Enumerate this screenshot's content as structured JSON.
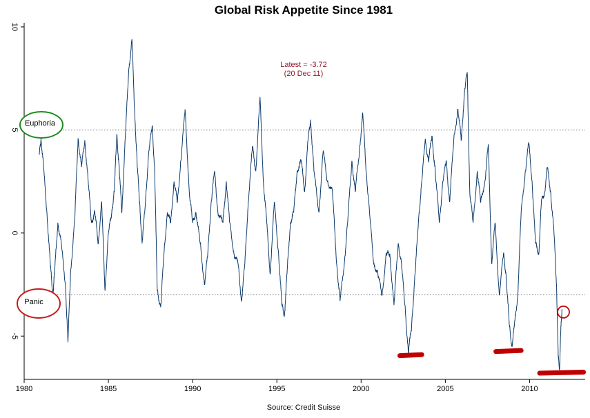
{
  "chart_data": {
    "type": "line",
    "title": "Global Risk Appetite Since 1981",
    "source": "Source: Credit Suisse",
    "xlabel": "",
    "ylabel": "",
    "xlim": [
      1980,
      2013.3
    ],
    "ylim": [
      -7.1,
      10.2
    ],
    "x_ticks": [
      1980,
      1985,
      1990,
      1995,
      2000,
      2005,
      2010
    ],
    "x_tick_labels": [
      "1980",
      "1985",
      "1990",
      "1995",
      "2000",
      "2005",
      "2010"
    ],
    "y_ticks": [
      10,
      5,
      0,
      -5
    ],
    "y_tick_labels": [
      "10",
      "5",
      "0",
      "-5"
    ],
    "grid": false,
    "reference_lines": [
      {
        "value": 5,
        "style": "dotted",
        "zone": "Euphoria"
      },
      {
        "value": -3,
        "style": "dotted",
        "zone": "Panic"
      }
    ],
    "annotation": {
      "line1": "Latest = -3.72",
      "line2": "(20 Dec 11)",
      "color": "#8b1a2b"
    },
    "zones": [
      {
        "label": "Euphoria",
        "value": 5,
        "circle_color": "#1e8a1e"
      },
      {
        "label": "Panic",
        "value": -3,
        "circle_color": "#c41e1e"
      }
    ],
    "highlights": {
      "color": "#c00000",
      "lows": [
        {
          "x_start": 2002.3,
          "x_end": 2003.6,
          "y": -5.95
        },
        {
          "x_start": 2008.0,
          "x_end": 2009.5,
          "y": -5.75
        },
        {
          "x_start": 2010.6,
          "x_end": 2013.2,
          "y": -6.8
        }
      ],
      "latest_marker": {
        "x": 2011.95,
        "y": -3.9
      }
    },
    "series": [
      {
        "color": "#0b3a6b",
        "points": [
          [
            1980.9,
            3.8
          ],
          [
            1981.0,
            4.6
          ],
          [
            1981.15,
            3.2
          ],
          [
            1981.35,
            1.0
          ],
          [
            1981.55,
            -1.5
          ],
          [
            1981.7,
            -3.0
          ],
          [
            1981.8,
            -2.0
          ],
          [
            1982.0,
            0.5
          ],
          [
            1982.2,
            -0.5
          ],
          [
            1982.45,
            -2.5
          ],
          [
            1982.6,
            -5.3
          ],
          [
            1982.75,
            -2.0
          ],
          [
            1983.0,
            0.6
          ],
          [
            1983.2,
            4.6
          ],
          [
            1983.4,
            3.2
          ],
          [
            1983.6,
            4.5
          ],
          [
            1983.8,
            2.5
          ],
          [
            1984.0,
            0.5
          ],
          [
            1984.2,
            1.0
          ],
          [
            1984.4,
            -0.5
          ],
          [
            1984.6,
            1.5
          ],
          [
            1984.8,
            -2.8
          ],
          [
            1985.0,
            0.0
          ],
          [
            1985.2,
            1.0
          ],
          [
            1985.35,
            2.0
          ],
          [
            1985.5,
            4.8
          ],
          [
            1985.65,
            3.0
          ],
          [
            1985.8,
            1.0
          ],
          [
            1986.0,
            4.6
          ],
          [
            1986.2,
            7.8
          ],
          [
            1986.4,
            9.4
          ],
          [
            1986.55,
            6.0
          ],
          [
            1986.7,
            3.5
          ],
          [
            1986.85,
            1.5
          ],
          [
            1987.0,
            -0.5
          ],
          [
            1987.2,
            1.5
          ],
          [
            1987.4,
            4.0
          ],
          [
            1987.6,
            5.2
          ],
          [
            1987.75,
            3.0
          ],
          [
            1987.9,
            -2.8
          ],
          [
            1988.1,
            -3.6
          ],
          [
            1988.3,
            -1.0
          ],
          [
            1988.5,
            1.0
          ],
          [
            1988.7,
            0.5
          ],
          [
            1988.9,
            2.5
          ],
          [
            1989.1,
            1.5
          ],
          [
            1989.3,
            3.5
          ],
          [
            1989.55,
            6.0
          ],
          [
            1989.8,
            2.0
          ],
          [
            1990.0,
            0.5
          ],
          [
            1990.2,
            1.0
          ],
          [
            1990.45,
            -0.5
          ],
          [
            1990.7,
            -2.5
          ],
          [
            1990.9,
            -1.0
          ],
          [
            1991.1,
            1.5
          ],
          [
            1991.3,
            3.0
          ],
          [
            1991.5,
            1.0
          ],
          [
            1991.8,
            0.5
          ],
          [
            1992.0,
            2.5
          ],
          [
            1992.2,
            0.5
          ],
          [
            1992.45,
            -1.0
          ],
          [
            1992.7,
            -1.5
          ],
          [
            1992.9,
            -3.3
          ],
          [
            1993.1,
            -1.5
          ],
          [
            1993.3,
            1.5
          ],
          [
            1993.55,
            4.2
          ],
          [
            1993.75,
            3.0
          ],
          [
            1994.0,
            6.6
          ],
          [
            1994.2,
            2.5
          ],
          [
            1994.4,
            0.5
          ],
          [
            1994.6,
            -2.0
          ],
          [
            1994.85,
            1.5
          ],
          [
            1995.1,
            -1.0
          ],
          [
            1995.3,
            -3.5
          ],
          [
            1995.45,
            -4.0
          ],
          [
            1995.6,
            -2.0
          ],
          [
            1995.8,
            0.5
          ],
          [
            1996.0,
            1.0
          ],
          [
            1996.2,
            3.0
          ],
          [
            1996.45,
            3.5
          ],
          [
            1996.65,
            2.0
          ],
          [
            1996.85,
            4.5
          ],
          [
            1997.0,
            5.5
          ],
          [
            1997.2,
            3.0
          ],
          [
            1997.5,
            1.0
          ],
          [
            1997.75,
            4.0
          ],
          [
            1998.0,
            2.5
          ],
          [
            1998.3,
            2.0
          ],
          [
            1998.55,
            -1.5
          ],
          [
            1998.75,
            -3.3
          ],
          [
            1999.0,
            -1.5
          ],
          [
            1999.2,
            0.5
          ],
          [
            1999.45,
            3.5
          ],
          [
            1999.65,
            2.0
          ],
          [
            1999.9,
            4.0
          ],
          [
            2000.1,
            5.8
          ],
          [
            2000.3,
            3.0
          ],
          [
            2000.5,
            1.0
          ],
          [
            2000.75,
            -1.5
          ],
          [
            2001.0,
            -2.0
          ],
          [
            2001.25,
            -3.0
          ],
          [
            2001.5,
            -1.0
          ],
          [
            2001.7,
            -1.0
          ],
          [
            2001.95,
            -3.5
          ],
          [
            2002.2,
            -0.5
          ],
          [
            2002.4,
            -1.5
          ],
          [
            2002.6,
            -3.5
          ],
          [
            2002.8,
            -5.8
          ],
          [
            2003.0,
            -4.5
          ],
          [
            2003.2,
            -2.0
          ],
          [
            2003.4,
            0.5
          ],
          [
            2003.6,
            2.5
          ],
          [
            2003.8,
            4.5
          ],
          [
            2004.0,
            3.5
          ],
          [
            2004.2,
            4.7
          ],
          [
            2004.4,
            3.0
          ],
          [
            2004.65,
            0.5
          ],
          [
            2004.85,
            2.5
          ],
          [
            2005.05,
            3.5
          ],
          [
            2005.25,
            1.5
          ],
          [
            2005.5,
            4.5
          ],
          [
            2005.75,
            6.0
          ],
          [
            2005.95,
            4.5
          ],
          [
            2006.15,
            7.0
          ],
          [
            2006.3,
            7.8
          ],
          [
            2006.45,
            2.0
          ],
          [
            2006.65,
            0.5
          ],
          [
            2006.9,
            3.0
          ],
          [
            2007.1,
            1.5
          ],
          [
            2007.35,
            2.5
          ],
          [
            2007.55,
            4.3
          ],
          [
            2007.75,
            -1.5
          ],
          [
            2007.95,
            0.5
          ],
          [
            2008.2,
            -3.0
          ],
          [
            2008.45,
            -1.0
          ],
          [
            2008.6,
            -2.0
          ],
          [
            2008.8,
            -4.5
          ],
          [
            2008.95,
            -5.5
          ],
          [
            2009.1,
            -4.5
          ],
          [
            2009.3,
            -3.0
          ],
          [
            2009.5,
            1.0
          ],
          [
            2009.75,
            3.0
          ],
          [
            2009.95,
            4.4
          ],
          [
            2010.15,
            2.5
          ],
          [
            2010.35,
            -0.5
          ],
          [
            2010.55,
            -1.0
          ],
          [
            2010.7,
            1.5
          ],
          [
            2010.9,
            2.0
          ],
          [
            2011.05,
            3.2
          ],
          [
            2011.25,
            2.0
          ],
          [
            2011.45,
            0.0
          ],
          [
            2011.6,
            -2.5
          ],
          [
            2011.7,
            -6.0
          ],
          [
            2011.78,
            -6.6
          ],
          [
            2011.85,
            -4.8
          ],
          [
            2011.92,
            -3.7
          ]
        ]
      }
    ]
  }
}
